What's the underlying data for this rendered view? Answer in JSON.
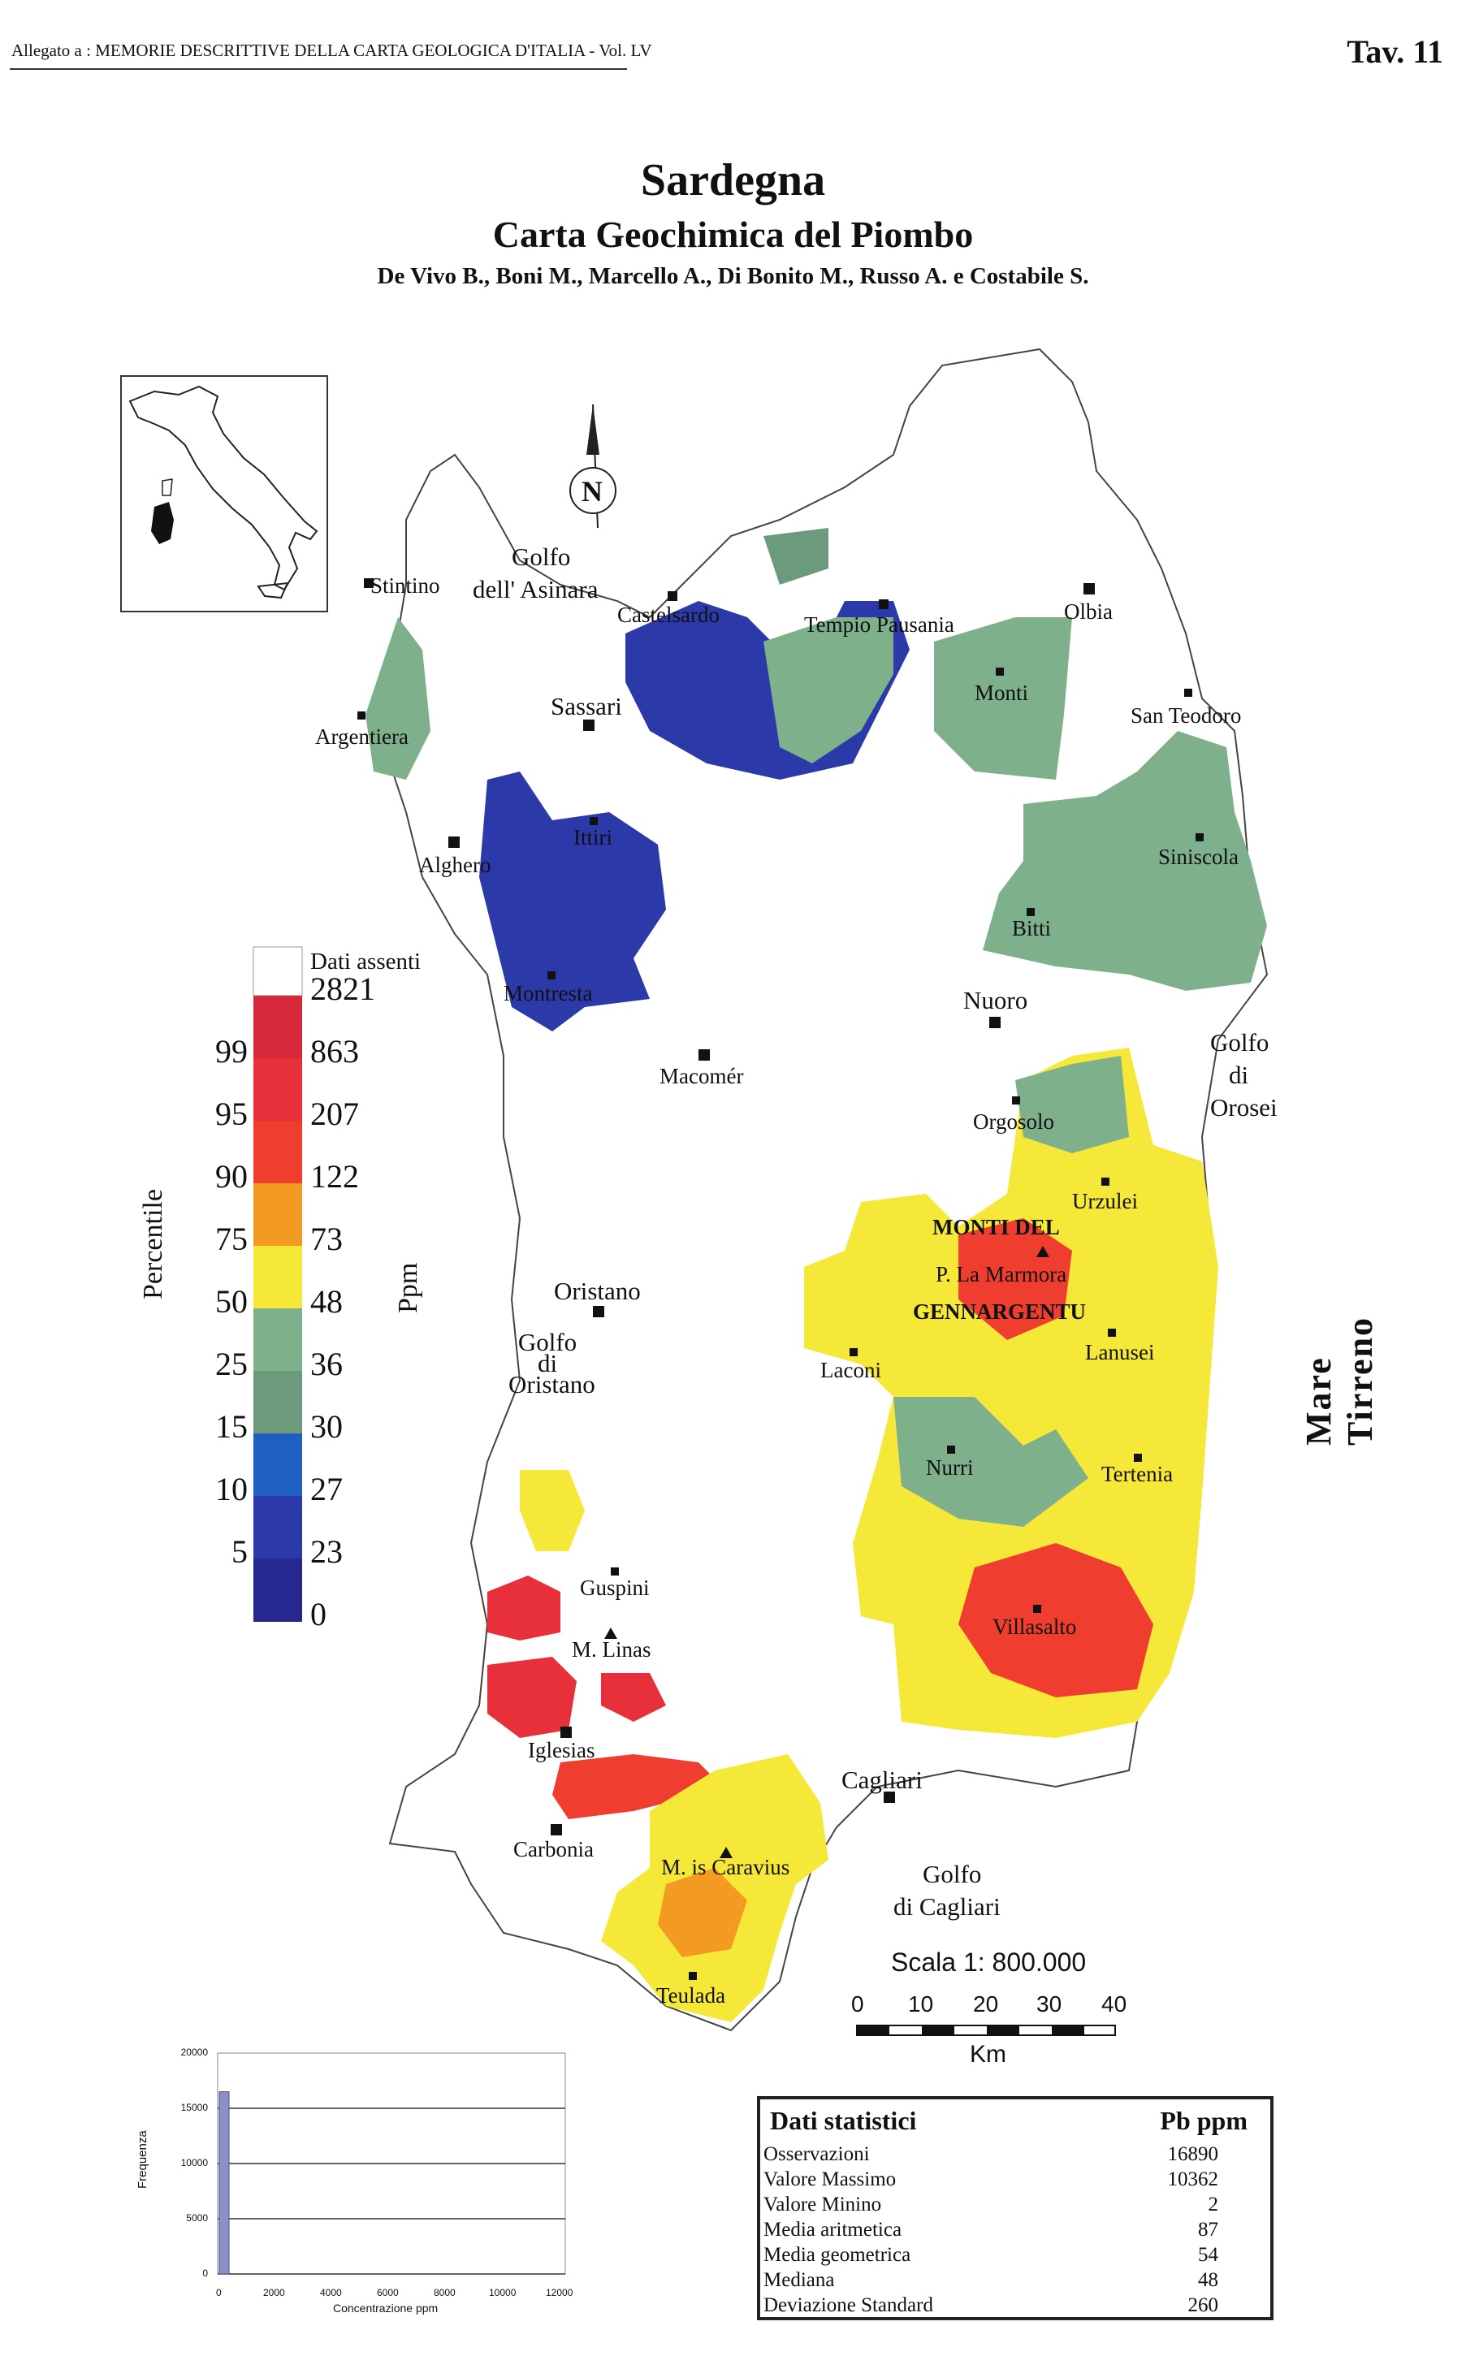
{
  "header": {
    "allegato": "Allegato a : MEMORIE DESCRITTIVE DELLA CARTA GEOLOGICA D'ITALIA - Vol. LV",
    "tav": "Tav. 11"
  },
  "title": "Sardegna",
  "subtitle": "Carta Geochimica del Piombo",
  "authors": "De Vivo B., Boni M., Marcello A., Di Bonito M., Russo A. e Costabile S.",
  "north": "N",
  "places": {
    "stintino": "Stintino",
    "golfo_asinara_1": "Golfo",
    "golfo_asinara_2": "dell' Asinara",
    "castelsardo": "Castelsardo",
    "tempio": "Tempio Pausania",
    "olbia": "Olbia",
    "sassari": "Sassari",
    "monti": "Monti",
    "san_teodoro": "San Teodoro",
    "argentiera": "Argentiera",
    "ittiri": "Ittiri",
    "alghero": "Alghero",
    "siniscola": "Siniscola",
    "bitti": "Bitti",
    "montresta": "Montresta",
    "nuoro": "Nuoro",
    "macomer": "Macomér",
    "golfo_orosei_1": "Golfo",
    "golfo_orosei_2": "di",
    "golfo_orosei_3": "Orosei",
    "orgosolo": "Orgosolo",
    "urzulei": "Urzulei",
    "monti_del": "MONTI    DEL",
    "la_marmora": "P. La Marmora",
    "gennargentu": "GENNARGENTU",
    "oristano": "Oristano",
    "golfo_oristano_1": "Golfo",
    "golfo_oristano_2": "di",
    "golfo_oristano_3": "Oristano",
    "laconi": "Laconi",
    "lanusei": "Lanusei",
    "nurri": "Nurri",
    "tertenia": "Tertenia",
    "guspini": "Guspini",
    "villasalto": "Villasalto",
    "linas": "M. Linas",
    "iglesias": "Iglesias",
    "cagliari": "Cagliari",
    "carbonia": "Carbonia",
    "caravius": "M. is Caravius",
    "golfo_cagliari_1": "Golfo",
    "golfo_cagliari_2": "di   Cagliari",
    "teulada": "Teulada"
  },
  "mare": "Mare Tirreno",
  "legend": {
    "dati_assenti": "Dati assenti",
    "percentile_label": "Percentile",
    "ppm_label": "Ppm",
    "classes": [
      {
        "ppm": "2821",
        "pct": "",
        "color": "#d62838"
      },
      {
        "ppm": "863",
        "pct": "99",
        "color": "#e8303a"
      },
      {
        "ppm": "207",
        "pct": "95",
        "color": "#ef3e2f"
      },
      {
        "ppm": "122",
        "pct": "90",
        "color": "#f39a22"
      },
      {
        "ppm": "73",
        "pct": "75",
        "color": "#f6e838"
      },
      {
        "ppm": "48",
        "pct": "50",
        "color": "#7fb08c"
      },
      {
        "ppm": "36",
        "pct": "25",
        "color": "#6b9a7d"
      },
      {
        "ppm": "30",
        "pct": "15",
        "color": "#1f5fc4"
      },
      {
        "ppm": "27",
        "pct": "10",
        "color": "#2b3aa8"
      },
      {
        "ppm": "23",
        "pct": "5",
        "color": "#26288f"
      },
      {
        "ppm": "0",
        "pct": "",
        "color": ""
      }
    ]
  },
  "scale": {
    "label": "Scala 1: 800.000",
    "ticks": [
      "0",
      "10",
      "20",
      "30",
      "40"
    ],
    "unit": "Km"
  },
  "stats": {
    "title": "Dati statistici",
    "col": "Pb ppm",
    "rows": [
      {
        "label": "Osservazioni",
        "value": "16890"
      },
      {
        "label": "Valore Massimo",
        "value": "10362"
      },
      {
        "label": "Valore Minino",
        "value": "2"
      },
      {
        "label": "Media aritmetica",
        "value": "87"
      },
      {
        "label": "Media geometrica",
        "value": "54"
      },
      {
        "label": "Mediana",
        "value": "48"
      },
      {
        "label": "Deviazione Standard",
        "value": "260"
      }
    ]
  },
  "histogram": {
    "ylabel": "Frequenza",
    "xlabel": "Concentrazione ppm",
    "yticks": [
      "20000",
      "15000",
      "10000",
      "5000",
      "0"
    ],
    "xticks": [
      "0",
      "2000",
      "4000",
      "6000",
      "8000",
      "10000",
      "12000"
    ]
  },
  "chart_data": {
    "type": "bar",
    "xlabel": "Concentrazione ppm",
    "ylabel": "Frequenza",
    "x": [
      0
    ],
    "values": [
      16500
    ],
    "ylim": [
      0,
      20000
    ],
    "xlim": [
      0,
      12000
    ]
  }
}
